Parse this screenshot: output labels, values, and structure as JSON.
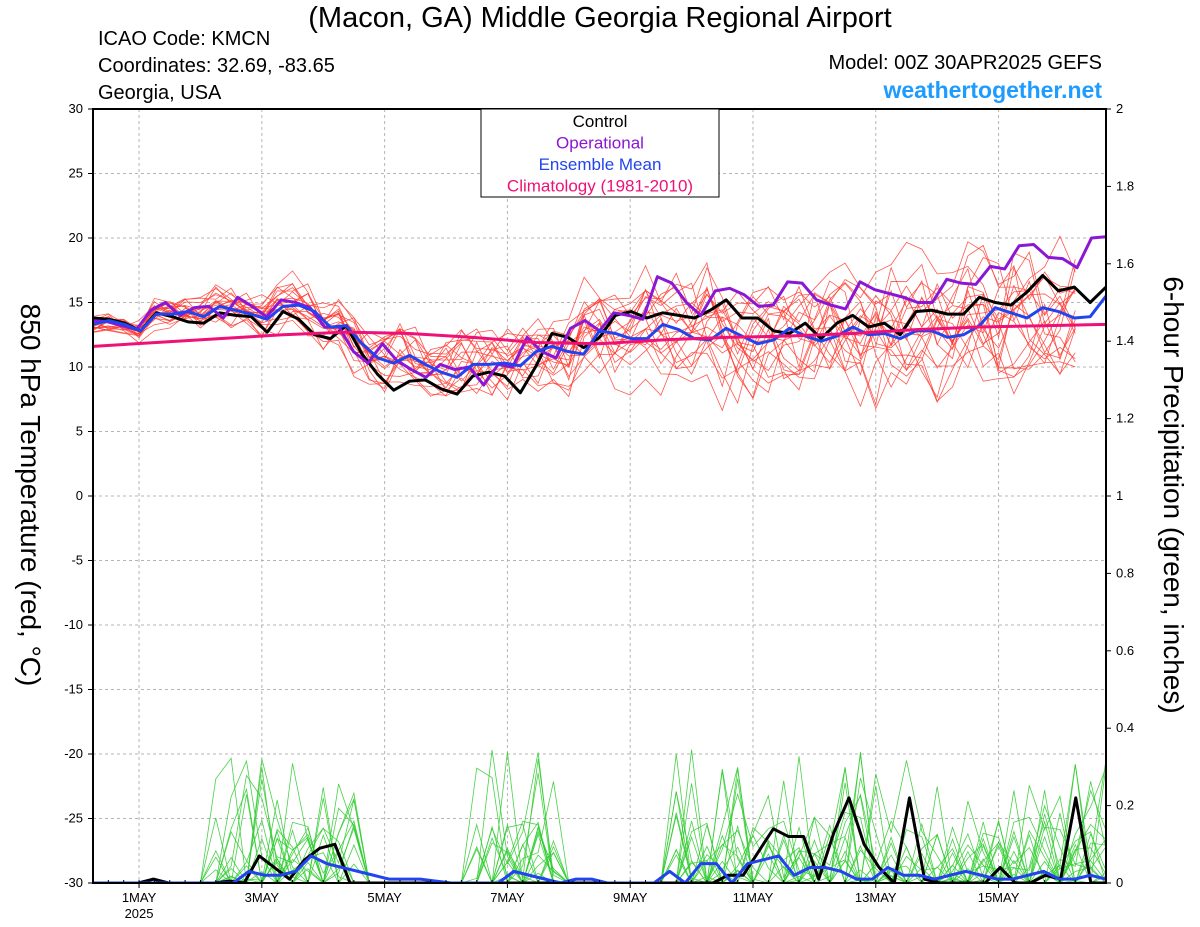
{
  "header": {
    "title": "(Macon, GA) Middle Georgia Regional Airport",
    "icao": "ICAO Code: KMCN",
    "coordinates": "Coordinates: 32.69, -83.65",
    "region": "Georgia, USA",
    "model": "Model: 00Z 30APR2025 GEFS",
    "website": "weathertogether.net"
  },
  "chart_data": {
    "type": "line",
    "ylabel": "850 hPa Temperature (red, °C)",
    "y2label": "6-hour Precipitation (green, inches)",
    "ylim": [
      -30,
      30
    ],
    "y2lim": [
      0,
      2
    ],
    "yticks": [
      "30",
      "25",
      "20",
      "15",
      "10",
      "5",
      "0",
      "-5",
      "-10",
      "-15",
      "-20",
      "-25",
      "-30"
    ],
    "y2ticks": [
      "2",
      "1.8",
      "1.6",
      "1.4",
      "1.2",
      "1",
      "0.8",
      "0.6",
      "0.4",
      "0.2",
      "0"
    ],
    "xlim": [
      0,
      66
    ],
    "xticks": [
      {
        "t": 3,
        "label": "1MAY",
        "sub": "2025"
      },
      {
        "t": 11,
        "label": "3MAY"
      },
      {
        "t": 19,
        "label": "5MAY"
      },
      {
        "t": 27,
        "label": "7MAY"
      },
      {
        "t": 35,
        "label": "9MAY"
      },
      {
        "t": 43,
        "label": "11MAY"
      },
      {
        "t": 51,
        "label": "13MAY"
      },
      {
        "t": 59,
        "label": "15MAY"
      }
    ],
    "grid": true,
    "legend_position": "top-center",
    "colors": {
      "members_temp": "#ff3b30",
      "members_precip": "#33cc33",
      "control": "#000000",
      "operational": "#8a17d6",
      "ensemble_mean": "#2244ee",
      "climatology": "#ee1177"
    },
    "legend": [
      {
        "name": "Control",
        "color": "#000000"
      },
      {
        "name": "Operational",
        "color": "#8a17d6"
      },
      {
        "name": "Ensemble Mean",
        "color": "#2244ee"
      },
      {
        "name": "Climatology (1981-2010)",
        "color": "#ee1177"
      }
    ],
    "series": [
      {
        "name": "Control",
        "kind": "temp",
        "values": [
          13.8,
          13.7,
          13.4,
          12.8,
          14.2,
          13.9,
          13.5,
          13.4,
          14.2,
          14.0,
          13.9,
          12.7,
          14.3,
          13.7,
          12.5,
          12.2,
          13.2,
          11.0,
          9.4,
          8.2,
          8.9,
          9.0,
          8.3,
          7.9,
          9.3,
          9.6,
          9.3,
          8.0,
          10.1,
          12.6,
          12.3,
          11.5,
          12.3,
          14.0,
          14.3,
          13.8,
          14.2,
          14.0,
          13.8,
          14.4,
          15.2,
          13.8,
          13.8,
          12.8,
          12.6,
          13.4,
          12.2,
          13.4,
          14.0,
          13.1,
          13.4,
          12.5,
          14.3,
          14.4,
          14.1,
          14.1,
          15.4,
          15.0,
          14.8,
          15.8,
          17.1,
          15.9,
          16.2,
          15.0,
          16.2
        ]
      },
      {
        "name": "Operational",
        "kind": "temp",
        "values": [
          13.6,
          13.5,
          13.2,
          12.9,
          14.4,
          15.0,
          14.0,
          14.6,
          14.7,
          13.8,
          15.4,
          14.7,
          13.9,
          15.2,
          15.0,
          14.6,
          13.1,
          13.1,
          11.2,
          10.3,
          11.8,
          10.5,
          9.8,
          9.2,
          10.2,
          9.8,
          10.0,
          8.6,
          10.2,
          10.0,
          12.3,
          11.2,
          10.7,
          13.0,
          13.6,
          12.8,
          14.2,
          14.0,
          13.7,
          17.0,
          16.5,
          15.0,
          14.0,
          15.9,
          16.1,
          15.6,
          14.7,
          14.8,
          16.6,
          16.5,
          15.2,
          14.8,
          14.5,
          16.6,
          16.0,
          15.7,
          15.4,
          15.0,
          15.0,
          16.8,
          16.5,
          16.4,
          17.8,
          17.6,
          19.4,
          19.5,
          18.5,
          18.4,
          17.7,
          20.0,
          20.1
        ]
      },
      {
        "name": "Ensemble Mean",
        "kind": "temp",
        "values": [
          13.3,
          13.6,
          13.3,
          12.8,
          14.1,
          14.1,
          14.3,
          13.9,
          14.7,
          14.4,
          14.1,
          13.7,
          14.7,
          14.8,
          14.3,
          13.1,
          13.2,
          11.8,
          10.7,
          10.3,
          10.9,
          10.2,
          9.6,
          9.2,
          10.2,
          10.2,
          10.3,
          10.1,
          11.2,
          11.6,
          11.2,
          11.0,
          12.8,
          12.6,
          12.2,
          12.2,
          13.3,
          12.9,
          12.2,
          12.1,
          13.0,
          12.4,
          11.8,
          12.1,
          13.0,
          12.4,
          12.0,
          12.4,
          13.1,
          12.5,
          12.6,
          12.2,
          12.8,
          12.8,
          12.3,
          12.5,
          13.2,
          14.6,
          14.2,
          13.8,
          14.6,
          14.3,
          13.8,
          13.9,
          15.5
        ]
      },
      {
        "name": "Climatology (1981-2010)",
        "kind": "temp",
        "values": [
          11.6,
          11.9,
          12.2,
          12.5,
          12.7,
          12.6,
          12.3,
          11.9,
          11.8,
          12.1,
          12.3,
          12.4,
          12.6,
          12.9,
          13.1,
          13.2,
          13.3
        ]
      },
      {
        "name": "Control",
        "kind": "precip",
        "values": [
          0,
          0,
          0,
          0,
          0.01,
          0,
          0,
          0,
          0,
          0.005,
          0,
          0.07,
          0.04,
          0.01,
          0.06,
          0.09,
          0.1,
          0,
          0,
          0,
          0,
          0,
          0,
          0,
          0,
          0,
          0,
          0,
          0,
          0,
          0,
          0,
          0,
          0,
          0,
          0,
          0,
          0,
          0,
          0,
          0,
          0,
          0.02,
          0.02,
          0.08,
          0.14,
          0.12,
          0.12,
          0.01,
          0.13,
          0.22,
          0.1,
          0.04,
          0,
          0.22,
          0.01,
          0,
          0,
          0,
          0,
          0.04,
          0,
          0,
          0.02,
          0.01,
          0.22,
          0,
          0
        ]
      },
      {
        "name": "Ensemble Mean",
        "kind": "precip",
        "values": [
          0,
          0,
          0,
          0,
          0,
          0,
          0,
          0,
          0,
          0,
          0.03,
          0.02,
          0.02,
          0.03,
          0.07,
          0.05,
          0.04,
          0.03,
          0.02,
          0.01,
          0.01,
          0.01,
          0.005,
          0,
          0,
          0,
          0,
          0.03,
          0.02,
          0.01,
          0,
          0.01,
          0.01,
          0,
          0,
          0,
          0,
          0.03,
          0,
          0.05,
          0.05,
          0,
          0.05,
          0.06,
          0.07,
          0.02,
          0.04,
          0.04,
          0.03,
          0.01,
          0.01,
          0.04,
          0.02,
          0.02,
          0.01,
          0.02,
          0.03,
          0.02,
          0.01,
          0.01,
          0.02,
          0.03,
          0.01,
          0.01,
          0.02,
          0.01
        ]
      }
    ]
  }
}
